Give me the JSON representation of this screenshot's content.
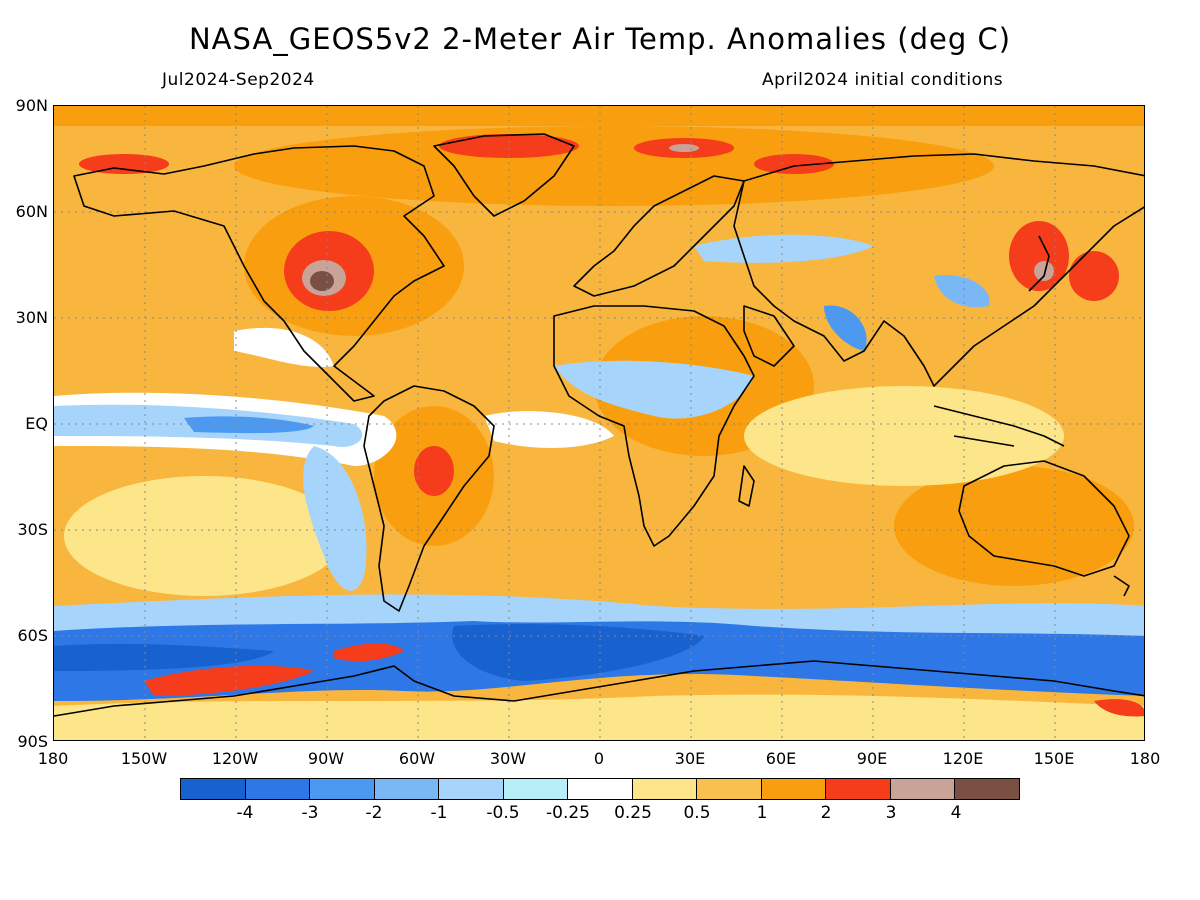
{
  "header": {
    "title": "NASA_GEOS5v2 2-Meter Air Temp. Anomalies (deg C)",
    "period": "Jul2024-Sep2024",
    "init": "April2024 initial conditions"
  },
  "axes": {
    "lat_labels": [
      "90N",
      "60N",
      "30N",
      "EQ",
      "30S",
      "60S",
      "90S"
    ],
    "lon_labels": [
      "180",
      "150W",
      "120W",
      "90W",
      "60W",
      "30W",
      "0",
      "30E",
      "60E",
      "90E",
      "120E",
      "150E",
      "180"
    ]
  },
  "legend": {
    "colors": [
      "#1862cf",
      "#2d78e6",
      "#4b99f0",
      "#7ab8f5",
      "#a7d4fa",
      "#b6edf7",
      "#ffffff",
      "#fde68a",
      "#f8c04f",
      "#f99e0e",
      "#f53c1b",
      "#c9a298",
      "#7a5045"
    ],
    "labels": [
      "-4",
      "-3",
      "-2",
      "-1",
      "-0.5",
      "-0.25",
      "0.25",
      "0.5",
      "1",
      "2",
      "3",
      "4"
    ]
  }
}
